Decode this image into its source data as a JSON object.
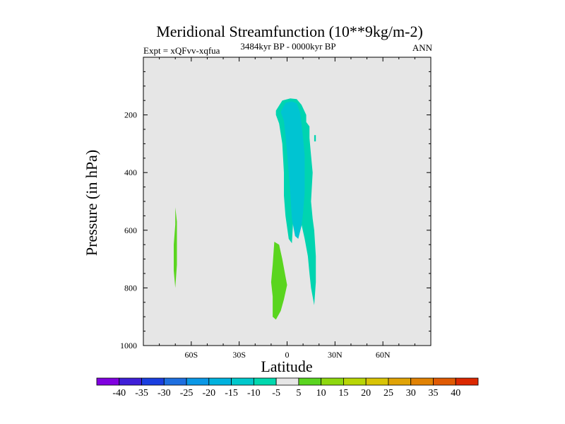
{
  "chart_data": {
    "type": "contour",
    "title": "Meridional Streamfunction (10**9kg/m-2)",
    "subtitle_left": "Expt = xQFvv-xqfua",
    "subtitle_center": "3484kyr BP - 0000kyr BP",
    "subtitle_right": "ANN",
    "xlabel": "Latitude",
    "ylabel": "Pressure (in hPa)",
    "xlim": [
      -90,
      90
    ],
    "ylim": [
      1000,
      0
    ],
    "x_ticks": [
      {
        "value": -60,
        "label": "60S"
      },
      {
        "value": -30,
        "label": "30S"
      },
      {
        "value": 0,
        "label": "0"
      },
      {
        "value": 30,
        "label": "30N"
      },
      {
        "value": 60,
        "label": "60N"
      }
    ],
    "y_ticks": [
      {
        "value": 200,
        "label": "200"
      },
      {
        "value": 400,
        "label": "400"
      },
      {
        "value": 600,
        "label": "600"
      },
      {
        "value": 800,
        "label": "800"
      },
      {
        "value": 1000,
        "label": "1000"
      }
    ],
    "background_color": "#e6e6e6",
    "regions": [
      {
        "name": "tropical-upper-cell-outer",
        "level": -5,
        "color": "#00d4b0",
        "points": [
          [
            -7,
            185
          ],
          [
            -3,
            150
          ],
          [
            2,
            143
          ],
          [
            6,
            145
          ],
          [
            9,
            165
          ],
          [
            12,
            200
          ],
          [
            12,
            225
          ],
          [
            14,
            240
          ],
          [
            14,
            280
          ],
          [
            15,
            340
          ],
          [
            16,
            400
          ],
          [
            15,
            500
          ],
          [
            16,
            560
          ],
          [
            17,
            600
          ],
          [
            18,
            690
          ],
          [
            18,
            780
          ],
          [
            17,
            860
          ],
          [
            15,
            800
          ],
          [
            14,
            750
          ],
          [
            13,
            690
          ],
          [
            11,
            630
          ],
          [
            9,
            580
          ],
          [
            6,
            580
          ],
          [
            4,
            550
          ],
          [
            3,
            645
          ],
          [
            1,
            630
          ],
          [
            -1,
            550
          ],
          [
            -2,
            480
          ],
          [
            -2,
            400
          ],
          [
            -3,
            300
          ],
          [
            -5,
            230
          ],
          [
            -7,
            200
          ]
        ]
      },
      {
        "name": "tropical-upper-cell-inner",
        "level": -10,
        "color": "#00c4d2",
        "points": [
          [
            -4,
            190
          ],
          [
            -1,
            158
          ],
          [
            3,
            153
          ],
          [
            6,
            160
          ],
          [
            8,
            190
          ],
          [
            9,
            230
          ],
          [
            10,
            280
          ],
          [
            11,
            340
          ],
          [
            11,
            400
          ],
          [
            11,
            470
          ],
          [
            10,
            540
          ],
          [
            9,
            585
          ],
          [
            7,
            630
          ],
          [
            5,
            620
          ],
          [
            3,
            560
          ],
          [
            2,
            470
          ],
          [
            1,
            400
          ],
          [
            0,
            330
          ],
          [
            -1,
            270
          ],
          [
            -2,
            220
          ]
        ]
      },
      {
        "name": "southern-subtropical-positive-cell",
        "level": 5,
        "color": "#5ad51f",
        "points": [
          [
            -8,
            640
          ],
          [
            -5,
            650
          ],
          [
            -3,
            700
          ],
          [
            -1,
            760
          ],
          [
            0,
            790
          ],
          [
            -2,
            840
          ],
          [
            -4,
            880
          ],
          [
            -7,
            910
          ],
          [
            -9,
            900
          ],
          [
            -9,
            830
          ],
          [
            -10,
            780
          ],
          [
            -9,
            720
          ]
        ]
      },
      {
        "name": "high-latitude-positive-sliver",
        "level": 5,
        "color": "#5ad51f",
        "points": [
          [
            -70,
            520
          ],
          [
            -69,
            570
          ],
          [
            -69,
            650
          ],
          [
            -69,
            720
          ],
          [
            -70,
            800
          ],
          [
            -71,
            740
          ],
          [
            -71,
            650
          ],
          [
            -70,
            580
          ]
        ]
      },
      {
        "name": "northern-small-fleck",
        "level": -5,
        "color": "#00d4b0",
        "points": [
          [
            17,
            270
          ],
          [
            18,
            270
          ],
          [
            18,
            292
          ],
          [
            17,
            292
          ]
        ]
      }
    ],
    "colorbar": {
      "labels": [
        "-40",
        "-35",
        "-30",
        "-25",
        "-20",
        "-15",
        "-10",
        "-5",
        "5",
        "10",
        "15",
        "20",
        "25",
        "30",
        "35",
        "40"
      ],
      "colors": [
        "#8000e0",
        "#3f1fd8",
        "#1a3fe0",
        "#1e6fe0",
        "#0a98e6",
        "#00b2de",
        "#00c8cc",
        "#00d8ae",
        "#e6e6e6",
        "#5ad51f",
        "#8ed80f",
        "#b8d606",
        "#d9c406",
        "#e0a306",
        "#e18203",
        "#e05a03",
        "#dc2800"
      ]
    }
  }
}
